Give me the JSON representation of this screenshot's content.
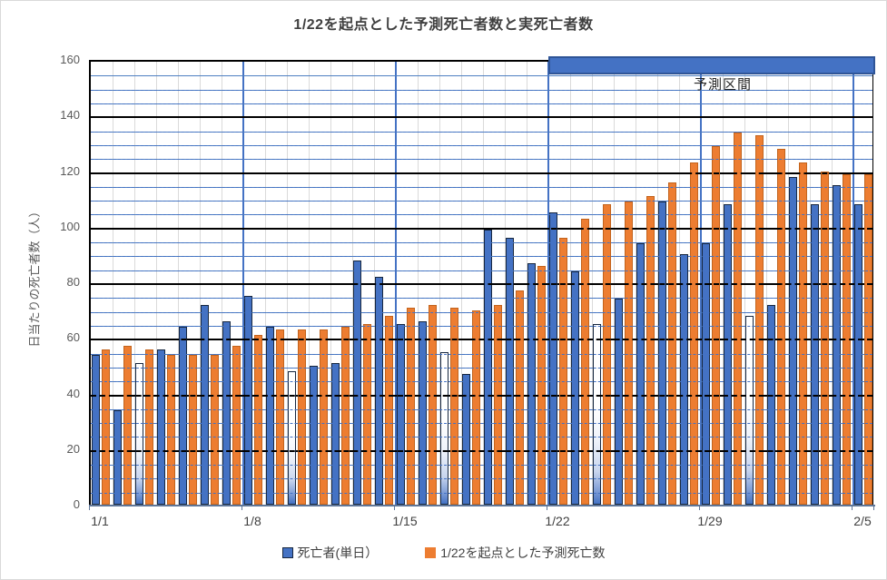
{
  "chart_title": "1/22を起点とした予測死亡者数と実死亡者数",
  "y_axis": {
    "title": "日当たりの死亡者数（人）",
    "tick_labels": [
      "0",
      "20",
      "40",
      "60",
      "80",
      "100",
      "120",
      "140",
      "160"
    ],
    "min": 0,
    "max": 160,
    "major_unit": 20,
    "minor_unit": 5
  },
  "x_axis": {
    "tick_labels": [
      "1/1",
      "1/8",
      "1/15",
      "1/22",
      "1/29",
      "2/5"
    ],
    "label_interval_days": 7
  },
  "legend": {
    "items": [
      {
        "label": "死亡者(単日）",
        "color": "#4472C4"
      },
      {
        "label": "1/22を起点とした予測死亡数",
        "color": "#ED7D31"
      }
    ]
  },
  "prediction_band": {
    "label": "予測区間",
    "start_category": "1/22",
    "end_category": "2/5",
    "color": "#4472C4",
    "border_color": "#2F5597"
  },
  "colors": {
    "actual_bar": "#4472C4",
    "predicted_bar": "#ED7D31",
    "major_gridline": "#000000",
    "minor_gridline_h": "#4E7FC1",
    "minor_gridline_v": "#DADADA",
    "major_gridline_v": "#4472C4",
    "axis_text": "#404040",
    "title_text": "#404040"
  },
  "chart_data": {
    "type": "bar",
    "title": "1/22を起点とした予測死亡者数と実死亡者数",
    "xlabel": "",
    "ylabel": "日当たりの死亡者数（人）",
    "ylim": [
      0,
      160
    ],
    "grid": true,
    "legend_position": "bottom",
    "categories": [
      "1/1",
      "1/2",
      "1/3",
      "1/4",
      "1/5",
      "1/6",
      "1/7",
      "1/8",
      "1/9",
      "1/10",
      "1/11",
      "1/12",
      "1/13",
      "1/14",
      "1/15",
      "1/16",
      "1/17",
      "1/18",
      "1/19",
      "1/20",
      "1/21",
      "1/22",
      "1/23",
      "1/24",
      "1/25",
      "1/26",
      "1/27",
      "1/28",
      "1/29",
      "1/30",
      "1/31",
      "2/1",
      "2/2",
      "2/3",
      "2/4",
      "2/5"
    ],
    "series": [
      {
        "name": "死亡者(単日）",
        "color": "#4472C4",
        "values": [
          54,
          34,
          51,
          56,
          64,
          72,
          66,
          75,
          64,
          48,
          50,
          51,
          88,
          82,
          65,
          66,
          55,
          47,
          99,
          96,
          87,
          105,
          84,
          65,
          74,
          94,
          109,
          90,
          94,
          108,
          68,
          72,
          118,
          108,
          115,
          108
        ]
      },
      {
        "name": "1/22を起点とした予測死亡数",
        "color": "#ED7D31",
        "values": [
          56,
          57,
          56,
          54,
          54,
          54,
          57,
          61,
          63,
          63,
          63,
          64,
          65,
          68,
          71,
          72,
          71,
          70,
          72,
          77,
          86,
          96,
          103,
          108,
          109,
          111,
          116,
          123,
          129,
          134,
          133,
          128,
          123,
          120,
          119,
          119
        ]
      }
    ],
    "white_gradient_actual_days": [
      "1/3",
      "1/10",
      "1/17",
      "1/24",
      "1/31"
    ],
    "prediction_band": {
      "label": "予測区間",
      "from": "1/22",
      "to": "2/5"
    }
  }
}
